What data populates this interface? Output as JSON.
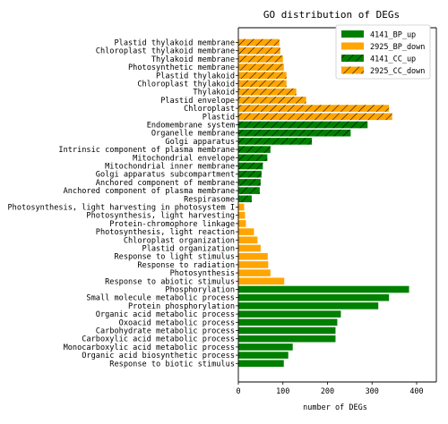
{
  "chart_data": {
    "type": "bar",
    "orientation": "horizontal",
    "title": "GO distribution of DEGs",
    "xlabel": "number of DEGs",
    "ylabel": "",
    "xlim": [
      0,
      400
    ],
    "xticks": [
      0,
      100,
      200,
      300,
      400
    ],
    "grid": false,
    "legend_position": "top-right",
    "colors": {
      "4141_BP_up": "#008000",
      "2925_BP_down": "#ffa500",
      "4141_CC_up": "#008000",
      "2925_CC_down": "#ffa500"
    },
    "legend": [
      {
        "name": "4141_BP_up",
        "hatch": false
      },
      {
        "name": "2925_BP_down",
        "hatch": false
      },
      {
        "name": "4141_CC_up",
        "hatch": true
      },
      {
        "name": "2925_CC_down",
        "hatch": true
      }
    ],
    "categories": [
      "Plastid thylakoid membrane",
      "Chloroplast thylakoid membrane",
      "Thylakoid membrane",
      "Photosynthetic membrane",
      "Plastid thylakoid",
      "Chloroplast thylakoid",
      "Thylakoid",
      "Plastid envelope",
      "Chloroplast",
      "Plastid",
      "Endomembrane system",
      "Organelle membrane",
      "Golgi apparatus",
      "Intrinsic component of plasma membrane",
      "Mitochondrial envelope",
      "Mitochondrial inner membrane",
      "Golgi apparatus subcompartment",
      "Anchored component of membrane",
      "Anchored component of plasma membrane",
      "Respirasome",
      "Photosynthesis, light harvesting in photosystem I",
      "Photosynthesis, light harvesting",
      "Protein-chromophore linkage",
      "Photosynthesis, light reaction",
      "Chloroplast organization",
      "Plastid organization",
      "Response to light stimulus",
      "Response to radiation",
      "Photosynthesis",
      "Response to abiotic stimulus",
      "Phosphorylation",
      "Small molecule metabolic process",
      "Protein phosphorylation",
      "Organic acid metabolic process",
      "Oxoacid metabolic process",
      "Carbohydrate metabolic process",
      "Carboxylic acid metabolic process",
      "Monocarboxylic acid metabolic process",
      "Organic acid biosynthetic process",
      "Response to biotic stimulus"
    ],
    "values": [
      92,
      94,
      100,
      102,
      108,
      108,
      130,
      152,
      338,
      345,
      290,
      252,
      165,
      72,
      65,
      55,
      52,
      50,
      48,
      30,
      13,
      15,
      17,
      35,
      43,
      50,
      66,
      67,
      72,
      103,
      383,
      338,
      314,
      230,
      222,
      218,
      218,
      122,
      112,
      102
    ],
    "series_of_bar": [
      "2925_CC_down",
      "2925_CC_down",
      "2925_CC_down",
      "2925_CC_down",
      "2925_CC_down",
      "2925_CC_down",
      "2925_CC_down",
      "2925_CC_down",
      "2925_CC_down",
      "2925_CC_down",
      "4141_CC_up",
      "4141_CC_up",
      "4141_CC_up",
      "4141_CC_up",
      "4141_CC_up",
      "4141_CC_up",
      "4141_CC_up",
      "4141_CC_up",
      "4141_CC_up",
      "4141_CC_up",
      "2925_BP_down",
      "2925_BP_down",
      "2925_BP_down",
      "2925_BP_down",
      "2925_BP_down",
      "2925_BP_down",
      "2925_BP_down",
      "2925_BP_down",
      "2925_BP_down",
      "2925_BP_down",
      "4141_BP_up",
      "4141_BP_up",
      "4141_BP_up",
      "4141_BP_up",
      "4141_BP_up",
      "4141_BP_up",
      "4141_BP_up",
      "4141_BP_up",
      "4141_BP_up",
      "4141_BP_up"
    ]
  }
}
